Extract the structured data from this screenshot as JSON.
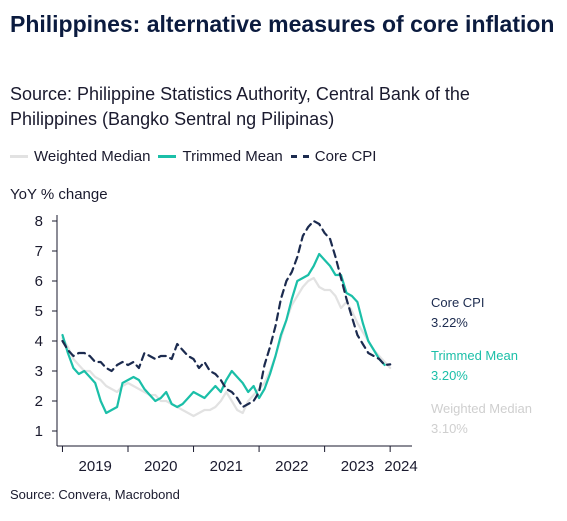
{
  "title": "Philippines: alternative measures of core inflation",
  "subtitle": "Source: Philippine Statistics Authority, Central Bank of the Philippines (Bangko Sentral ng Pilipinas)",
  "footer": "Source: Convera, Macrobond",
  "colors": {
    "weighted_median": "#e2e2e2",
    "trimmed_mean": "#1bbfa8",
    "core_cpi": "#1c2b4f",
    "axis": "#1a1a2e"
  },
  "legend": [
    {
      "name": "Weighted Median",
      "style": "solid-light"
    },
    {
      "name": "Trimmed Mean",
      "style": "solid-teal"
    },
    {
      "name": "Core CPI",
      "style": "dashed-navy"
    }
  ],
  "end_labels": [
    {
      "series": "Core CPI",
      "value": "3.22%"
    },
    {
      "series": "Trimmed Mean",
      "value": "3.20%"
    },
    {
      "series": "Weighted Median",
      "value": "3.10%"
    }
  ],
  "chart_data": {
    "type": "line",
    "title": "Philippines: alternative measures of core inflation",
    "xlabel": "",
    "ylabel": "YoY % change",
    "ylim": [
      0.5,
      8.5
    ],
    "yticks": [
      1,
      2,
      3,
      4,
      5,
      6,
      7,
      8
    ],
    "xlim": [
      "2018-12",
      "2024-05"
    ],
    "xticks": [
      {
        "label": "2019",
        "at": "2019-07"
      },
      {
        "label": "2020",
        "at": "2020-07"
      },
      {
        "label": "2021",
        "at": "2021-07"
      },
      {
        "label": "2022",
        "at": "2022-07"
      },
      {
        "label": "2023",
        "at": "2023-07"
      },
      {
        "label": "2024",
        "at": "2024-03"
      }
    ],
    "grid": false,
    "legend_position": "top",
    "series": [
      {
        "name": "Weighted Median",
        "points": [
          [
            "2019-01",
            4.1
          ],
          [
            "2019-02",
            3.8
          ],
          [
            "2019-03",
            3.4
          ],
          [
            "2019-04",
            3.2
          ],
          [
            "2019-05",
            3.0
          ],
          [
            "2019-06",
            3.0
          ],
          [
            "2019-07",
            2.8
          ],
          [
            "2019-08",
            2.7
          ],
          [
            "2019-09",
            2.5
          ],
          [
            "2019-10",
            2.4
          ],
          [
            "2019-11",
            2.3
          ],
          [
            "2019-12",
            2.5
          ],
          [
            "2020-01",
            2.6
          ],
          [
            "2020-02",
            2.5
          ],
          [
            "2020-03",
            2.4
          ],
          [
            "2020-04",
            2.3
          ],
          [
            "2020-05",
            2.2
          ],
          [
            "2020-06",
            2.2
          ],
          [
            "2020-07",
            2.0
          ],
          [
            "2020-08",
            2.0
          ],
          [
            "2020-09",
            1.9
          ],
          [
            "2020-10",
            1.8
          ],
          [
            "2020-11",
            1.7
          ],
          [
            "2020-12",
            1.6
          ],
          [
            "2021-01",
            1.5
          ],
          [
            "2021-02",
            1.6
          ],
          [
            "2021-03",
            1.7
          ],
          [
            "2021-04",
            1.7
          ],
          [
            "2021-05",
            1.8
          ],
          [
            "2021-06",
            2.0
          ],
          [
            "2021-07",
            2.3
          ],
          [
            "2021-08",
            2.0
          ],
          [
            "2021-09",
            1.7
          ],
          [
            "2021-10",
            1.6
          ],
          [
            "2021-11",
            2.0
          ],
          [
            "2021-12",
            2.2
          ],
          [
            "2022-01",
            2.4
          ],
          [
            "2022-02",
            2.6
          ],
          [
            "2022-03",
            3.0
          ],
          [
            "2022-04",
            3.5
          ],
          [
            "2022-05",
            4.1
          ],
          [
            "2022-06",
            4.7
          ],
          [
            "2022-07",
            5.2
          ],
          [
            "2022-08",
            5.5
          ],
          [
            "2022-09",
            5.8
          ],
          [
            "2022-10",
            6.0
          ],
          [
            "2022-11",
            6.1
          ],
          [
            "2022-12",
            5.8
          ],
          [
            "2023-01",
            5.7
          ],
          [
            "2023-02",
            5.7
          ],
          [
            "2023-03",
            5.5
          ],
          [
            "2023-04",
            5.1
          ],
          [
            "2023-05",
            5.3
          ],
          [
            "2023-06",
            5.0
          ],
          [
            "2023-07",
            4.6
          ],
          [
            "2023-08",
            4.3
          ],
          [
            "2023-09",
            4.0
          ],
          [
            "2023-10",
            3.7
          ],
          [
            "2023-11",
            3.5
          ],
          [
            "2023-12",
            3.3
          ],
          [
            "2024-01",
            3.1
          ]
        ]
      },
      {
        "name": "Trimmed Mean",
        "points": [
          [
            "2019-01",
            4.2
          ],
          [
            "2019-02",
            3.6
          ],
          [
            "2019-03",
            3.1
          ],
          [
            "2019-04",
            2.9
          ],
          [
            "2019-05",
            3.0
          ],
          [
            "2019-06",
            2.8
          ],
          [
            "2019-07",
            2.6
          ],
          [
            "2019-08",
            2.0
          ],
          [
            "2019-09",
            1.6
          ],
          [
            "2019-10",
            1.7
          ],
          [
            "2019-11",
            1.8
          ],
          [
            "2019-12",
            2.6
          ],
          [
            "2020-01",
            2.7
          ],
          [
            "2020-02",
            2.8
          ],
          [
            "2020-03",
            2.7
          ],
          [
            "2020-04",
            2.4
          ],
          [
            "2020-05",
            2.2
          ],
          [
            "2020-06",
            2.0
          ],
          [
            "2020-07",
            2.1
          ],
          [
            "2020-08",
            2.3
          ],
          [
            "2020-09",
            1.9
          ],
          [
            "2020-10",
            1.8
          ],
          [
            "2020-11",
            1.9
          ],
          [
            "2020-12",
            2.1
          ],
          [
            "2021-01",
            2.3
          ],
          [
            "2021-02",
            2.2
          ],
          [
            "2021-03",
            2.1
          ],
          [
            "2021-04",
            2.3
          ],
          [
            "2021-05",
            2.5
          ],
          [
            "2021-06",
            2.3
          ],
          [
            "2021-07",
            2.7
          ],
          [
            "2021-08",
            3.0
          ],
          [
            "2021-09",
            2.8
          ],
          [
            "2021-10",
            2.6
          ],
          [
            "2021-11",
            2.3
          ],
          [
            "2021-12",
            2.5
          ],
          [
            "2022-01",
            2.1
          ],
          [
            "2022-02",
            2.4
          ],
          [
            "2022-03",
            2.9
          ],
          [
            "2022-04",
            3.5
          ],
          [
            "2022-05",
            4.2
          ],
          [
            "2022-06",
            4.7
          ],
          [
            "2022-07",
            5.4
          ],
          [
            "2022-08",
            6.0
          ],
          [
            "2022-09",
            6.1
          ],
          [
            "2022-10",
            6.2
          ],
          [
            "2022-11",
            6.5
          ],
          [
            "2022-12",
            6.9
          ],
          [
            "2023-01",
            6.7
          ],
          [
            "2023-02",
            6.5
          ],
          [
            "2023-03",
            6.2
          ],
          [
            "2023-04",
            6.2
          ],
          [
            "2023-05",
            5.6
          ],
          [
            "2023-06",
            5.5
          ],
          [
            "2023-07",
            5.3
          ],
          [
            "2023-08",
            4.6
          ],
          [
            "2023-09",
            4.0
          ],
          [
            "2023-10",
            3.7
          ],
          [
            "2023-11",
            3.4
          ],
          [
            "2023-12",
            3.2
          ]
        ]
      },
      {
        "name": "Core CPI",
        "points": [
          [
            "2019-01",
            4.0
          ],
          [
            "2019-02",
            3.7
          ],
          [
            "2019-03",
            3.5
          ],
          [
            "2019-04",
            3.6
          ],
          [
            "2019-05",
            3.6
          ],
          [
            "2019-06",
            3.5
          ],
          [
            "2019-07",
            3.3
          ],
          [
            "2019-08",
            3.3
          ],
          [
            "2019-09",
            3.1
          ],
          [
            "2019-10",
            3.0
          ],
          [
            "2019-11",
            3.2
          ],
          [
            "2019-12",
            3.3
          ],
          [
            "2020-01",
            3.2
          ],
          [
            "2020-02",
            3.3
          ],
          [
            "2020-03",
            3.1
          ],
          [
            "2020-04",
            3.6
          ],
          [
            "2020-05",
            3.5
          ],
          [
            "2020-06",
            3.4
          ],
          [
            "2020-07",
            3.5
          ],
          [
            "2020-08",
            3.5
          ],
          [
            "2020-09",
            3.4
          ],
          [
            "2020-10",
            3.9
          ],
          [
            "2020-11",
            3.7
          ],
          [
            "2020-12",
            3.5
          ],
          [
            "2021-01",
            3.4
          ],
          [
            "2021-02",
            3.1
          ],
          [
            "2021-03",
            3.3
          ],
          [
            "2021-04",
            3.0
          ],
          [
            "2021-05",
            2.9
          ],
          [
            "2021-06",
            2.7
          ],
          [
            "2021-07",
            2.4
          ],
          [
            "2021-08",
            2.3
          ],
          [
            "2021-09",
            2.1
          ],
          [
            "2021-10",
            1.8
          ],
          [
            "2021-11",
            1.9
          ],
          [
            "2021-12",
            2.0
          ],
          [
            "2022-01",
            2.3
          ],
          [
            "2022-02",
            3.2
          ],
          [
            "2022-03",
            3.8
          ],
          [
            "2022-04",
            4.5
          ],
          [
            "2022-05",
            5.4
          ],
          [
            "2022-06",
            6.0
          ],
          [
            "2022-07",
            6.3
          ],
          [
            "2022-08",
            6.8
          ],
          [
            "2022-09",
            7.5
          ],
          [
            "2022-10",
            7.8
          ],
          [
            "2022-11",
            8.0
          ],
          [
            "2022-12",
            7.9
          ],
          [
            "2023-01",
            7.6
          ],
          [
            "2023-02",
            7.4
          ],
          [
            "2023-03",
            6.8
          ],
          [
            "2023-04",
            6.1
          ],
          [
            "2023-05",
            5.4
          ],
          [
            "2023-06",
            4.8
          ],
          [
            "2023-07",
            4.2
          ],
          [
            "2023-08",
            3.9
          ],
          [
            "2023-09",
            3.6
          ],
          [
            "2023-10",
            3.5
          ],
          [
            "2023-11",
            3.4
          ],
          [
            "2023-12",
            3.2
          ],
          [
            "2024-01",
            3.22
          ]
        ]
      }
    ]
  }
}
